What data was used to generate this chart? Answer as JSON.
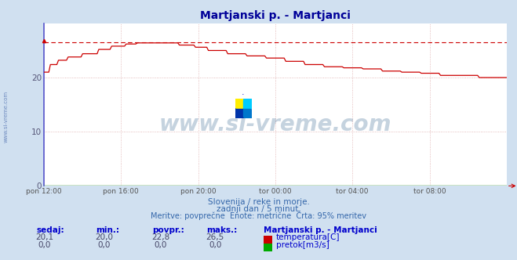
{
  "title": "Martjanski p. - Martjanci",
  "title_color": "#000099",
  "bg_color": "#d0e0f0",
  "plot_bg_color": "#ffffff",
  "grid_color": "#ddaaaa",
  "ylabel_ticks": [
    0,
    10,
    20
  ],
  "ylim": [
    0,
    30
  ],
  "xlim_hours": [
    0,
    24
  ],
  "x_tick_labels": [
    "pon 12:00",
    "pon 16:00",
    "pon 20:00",
    "tor 00:00",
    "tor 04:00",
    "tor 08:00"
  ],
  "x_tick_positions": [
    0,
    4,
    8,
    12,
    16,
    20
  ],
  "line_color": "#cc0000",
  "flow_color": "#00aa00",
  "dashed_line_y": 26.5,
  "dashed_line_color": "#cc0000",
  "left_axis_color": "#5555cc",
  "subtitle1": "Slovenija / reke in morje.",
  "subtitle2": "zadnji dan / 5 minut.",
  "subtitle3": "Meritve: povprečne  Enote: metrične  Črta: 95% meritev",
  "subtitle_color": "#3366aa",
  "footer_label_color": "#0000cc",
  "footer_station": "Martjanski p. - Martjanci",
  "footer_station_color": "#0000cc",
  "footer_headers": [
    "sedaj:",
    "min.:",
    "povpr.:",
    "maks.:"
  ],
  "footer_temp": [
    "20,1",
    "20,0",
    "22,8",
    "26,5"
  ],
  "footer_flow": [
    "0,0",
    "0,0",
    "0,0",
    "0,0"
  ],
  "temp_legend": "temperatura[C]",
  "flow_legend": "pretok[m3/s]",
  "watermark": "www.si-vreme.com",
  "watermark_color": "#1a5080",
  "sidebar_text": "www.si-vreme.com",
  "sidebar_color": "#4466aa"
}
